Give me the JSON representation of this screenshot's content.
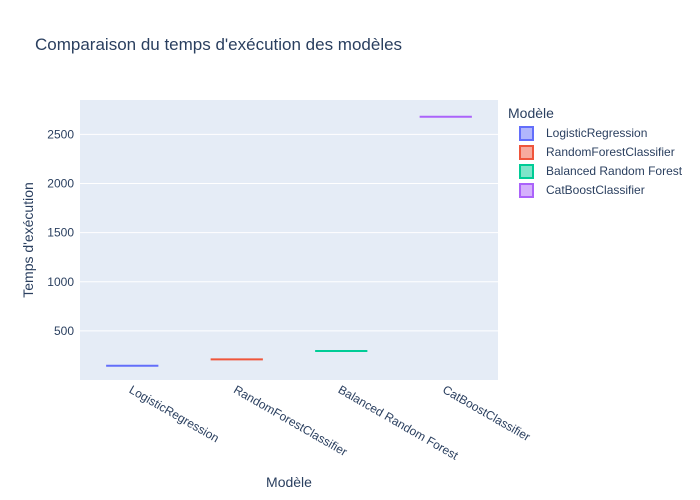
{
  "chart_data": {
    "type": "box",
    "title": "Comparaison du temps d'exécution des modèles",
    "xlabel": "Modèle",
    "ylabel": "Temps d'exécution",
    "categories": [
      "LogisticRegression",
      "RandomForestClassifier",
      "Balanced Random Forest",
      "CatBoostClassifier"
    ],
    "series": [
      {
        "name": "LogisticRegression",
        "category": "LogisticRegression",
        "value": 145,
        "color": "#636efa"
      },
      {
        "name": "RandomForestClassifier",
        "category": "RandomForestClassifier",
        "value": 210,
        "color": "#ef553b"
      },
      {
        "name": "Balanced Random Forest",
        "category": "Balanced Random Forest",
        "value": 295,
        "color": "#00cc96"
      },
      {
        "name": "CatBoostClassifier",
        "category": "CatBoostClassifier",
        "value": 2680,
        "color": "#ab63fa"
      }
    ],
    "yticks": [
      500,
      1000,
      1500,
      2000,
      2500
    ],
    "ylim": [
      0,
      2850
    ],
    "legend": {
      "title": "Modèle",
      "placement": "right"
    },
    "grid": true,
    "plot_background": "#e5ecf6"
  }
}
